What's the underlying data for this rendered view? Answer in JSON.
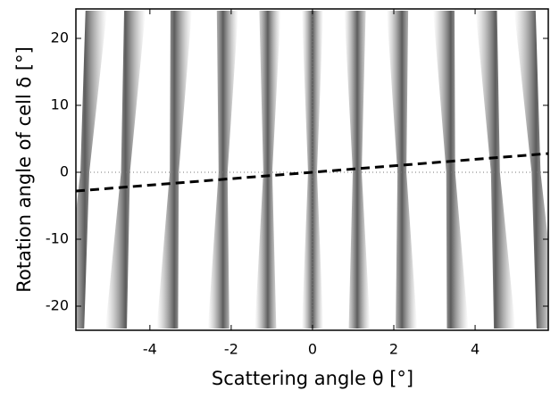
{
  "chart_data": {
    "type": "image",
    "xlabel": "Scattering angle θ [°]",
    "ylabel": "Rotation angle of cell δ [°]",
    "xlim": [
      -5.82,
      5.8
    ],
    "ylim": [
      -23.6,
      24.4
    ],
    "xticks": [
      -4,
      -2,
      0,
      2,
      4
    ],
    "yticks": [
      -20,
      -10,
      0,
      10,
      20
    ],
    "hlines": [
      0
    ],
    "vlines": [
      0
    ],
    "streak_x": [
      -5.6,
      -4.6,
      -3.4,
      -2.2,
      -1.1,
      0,
      1.1,
      2.2,
      3.4,
      4.5,
      5.5
    ],
    "series": [
      {
        "color": "#000000",
        "x": [
          -5.82,
          5.8
        ],
        "values": [
          -2.8,
          2.8
        ]
      }
    ]
  }
}
